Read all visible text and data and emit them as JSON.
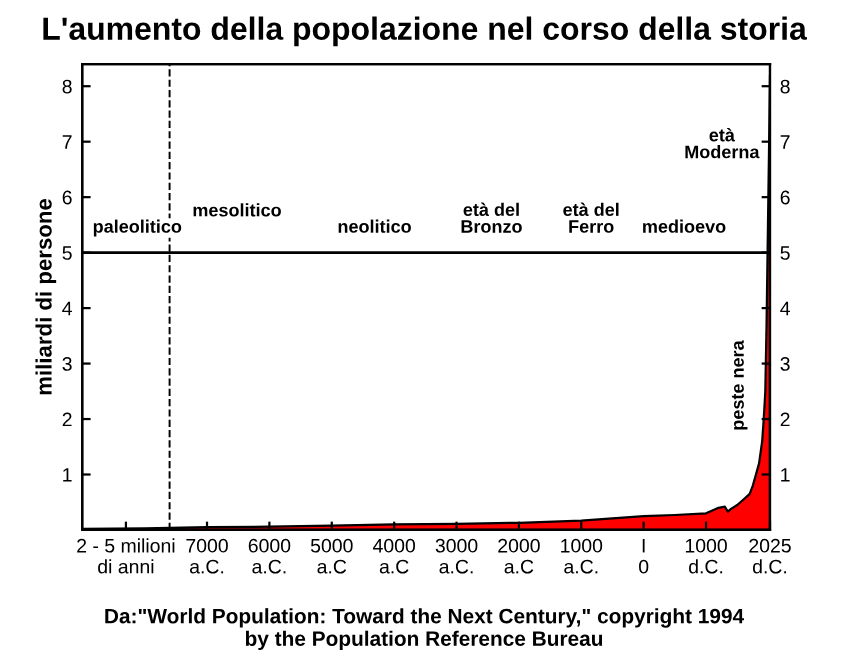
{
  "chart_data": {
    "type": "area",
    "title": "L'aumento della popolazione nel corso della storia",
    "ylabel": "miliardi di persone",
    "x": [
      -9000,
      -8000,
      -7000,
      -6000,
      -5000,
      -4000,
      -3000,
      -2000,
      -1000,
      0,
      500,
      1000,
      1200,
      1300,
      1350,
      1400,
      1500,
      1600,
      1700,
      1750,
      1800,
      1850,
      1900,
      1925,
      1950,
      1970,
      1990,
      2000,
      2010,
      2025
    ],
    "series": [
      {
        "color": "#ff0000",
        "values": [
          0.02,
          0.03,
          0.05,
          0.06,
          0.08,
          0.1,
          0.11,
          0.13,
          0.17,
          0.25,
          0.27,
          0.3,
          0.4,
          0.42,
          0.33,
          0.38,
          0.45,
          0.55,
          0.65,
          0.8,
          1.0,
          1.2,
          1.6,
          2.0,
          2.5,
          3.7,
          5.3,
          6.1,
          6.9,
          8.2
        ]
      }
    ],
    "xlim": [
      -9000,
      2025
    ],
    "xticks": [
      {
        "value": -8300,
        "label": "2 - 5 milioni\ndi anni"
      },
      {
        "value": -7000,
        "label": "7000\na.C."
      },
      {
        "value": -6000,
        "label": "6000\na.C."
      },
      {
        "value": -5000,
        "label": "5000\na.C"
      },
      {
        "value": -4000,
        "label": "4000\na.C"
      },
      {
        "value": -3000,
        "label": "3000\na.C."
      },
      {
        "value": -2000,
        "label": "2000\na.C"
      },
      {
        "value": -1000,
        "label": "1000\na.C."
      },
      {
        "value": 0,
        "label": "I\n0"
      },
      {
        "value": 1000,
        "label": "1000\nd.C."
      },
      {
        "value": 2025,
        "label": "2025\nd.C."
      }
    ],
    "ylim": [
      0,
      8.4
    ],
    "yticks": [
      1,
      2,
      3,
      4,
      5,
      6,
      7,
      8
    ],
    "y2lim": [
      0,
      8.4
    ],
    "y2ticks": [
      1,
      2,
      3,
      4,
      5,
      6,
      7,
      8
    ],
    "grid": false,
    "legend": false,
    "ref_lines": [
      {
        "axis": "y",
        "value": 5,
        "color": "#000000",
        "line_style": "solid"
      },
      {
        "axis": "x",
        "value": -7600,
        "color": "#000000",
        "line_style": "dashed"
      }
    ],
    "annotations": [
      "paleolitico",
      "mesolitico",
      "neolitico",
      "età del\nBronzo",
      "età del\nFerro",
      "medioevo",
      "età\nModerna",
      "peste nera",
      "Da:\"World Population: Toward the Next Century,\" copyright 1994\nby the Population Reference Bureau"
    ]
  }
}
